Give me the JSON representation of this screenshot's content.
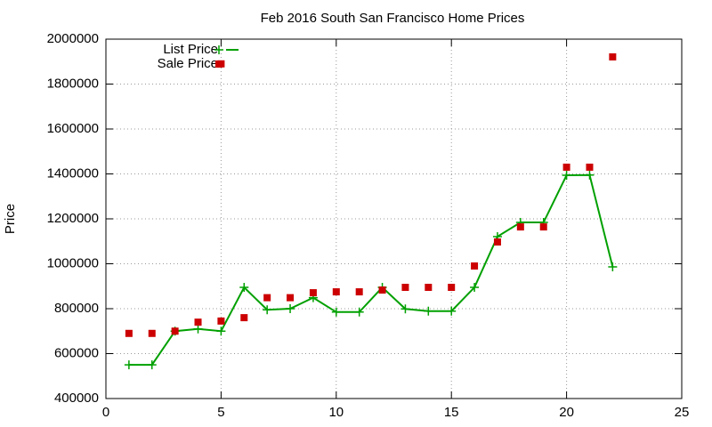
{
  "chart_data": {
    "type": "line",
    "title": "Feb 2016 South San Francisco Home Prices",
    "y_label": "Price",
    "xlim": [
      0,
      25
    ],
    "xticks": [
      0,
      5,
      10,
      15,
      20,
      25
    ],
    "ylim": [
      400000,
      2000000
    ],
    "yticks": [
      400000,
      600000,
      800000,
      1000000,
      1200000,
      1400000,
      1600000,
      1800000,
      2000000
    ],
    "grid": true,
    "legend": "top-left",
    "series": [
      {
        "name": "List Price",
        "color": "#00a000",
        "mode": "lines+points",
        "x": [
          1,
          2,
          3,
          4,
          5,
          6,
          7,
          8,
          9,
          10,
          11,
          12,
          13,
          14,
          15,
          16,
          17,
          18,
          19,
          20,
          21,
          22
        ],
        "values": [
          550000,
          550000,
          700000,
          710000,
          700000,
          895000,
          795000,
          800000,
          849000,
          785000,
          785000,
          895000,
          799000,
          789000,
          789000,
          895000,
          1121000,
          1184000,
          1184000,
          1394000,
          1395000,
          986000
        ]
      },
      {
        "name": "Sale Price",
        "color": "#cc0000",
        "mode": "points",
        "x": [
          1,
          2,
          3,
          4,
          5,
          5,
          6,
          7,
          8,
          9,
          10,
          11,
          12,
          13,
          14,
          15,
          16,
          17,
          18,
          19,
          20,
          21,
          22
        ],
        "values": [
          690000,
          690000,
          700000,
          740000,
          745000,
          1890000,
          760000,
          849000,
          849000,
          871000,
          875000,
          875000,
          883000,
          895000,
          895000,
          895000,
          990000,
          1097000,
          1164000,
          1164000,
          1430000,
          1430000,
          1921000
        ]
      }
    ]
  }
}
